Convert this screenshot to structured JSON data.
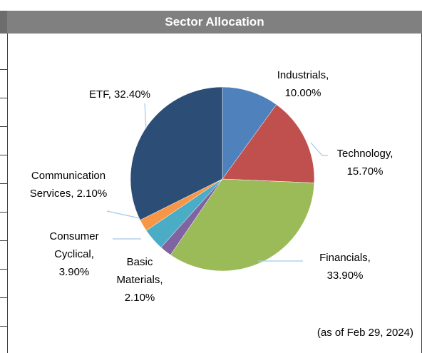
{
  "chart_data": {
    "type": "pie",
    "title": "Sector Allocation",
    "note": "(as of Feb 29, 2024)",
    "labels": [
      "Industrials, 10.00%",
      "Technology, 15.70%",
      "Financials, 33.90%",
      "Basic Materials, 2.10%",
      "Consumer Cyclical, 3.90%",
      "Communication Services, 2.10%",
      "ETF, 32.40%"
    ],
    "values": [
      10,
      15.7,
      33.9,
      2.1,
      3.9,
      2.1,
      32.4
    ],
    "colors": [
      "#4f81bd",
      "#c0504d",
      "#9bbb59",
      "#8064a2",
      "#4bacc6",
      "#f79646",
      "#2c4d75"
    ]
  }
}
